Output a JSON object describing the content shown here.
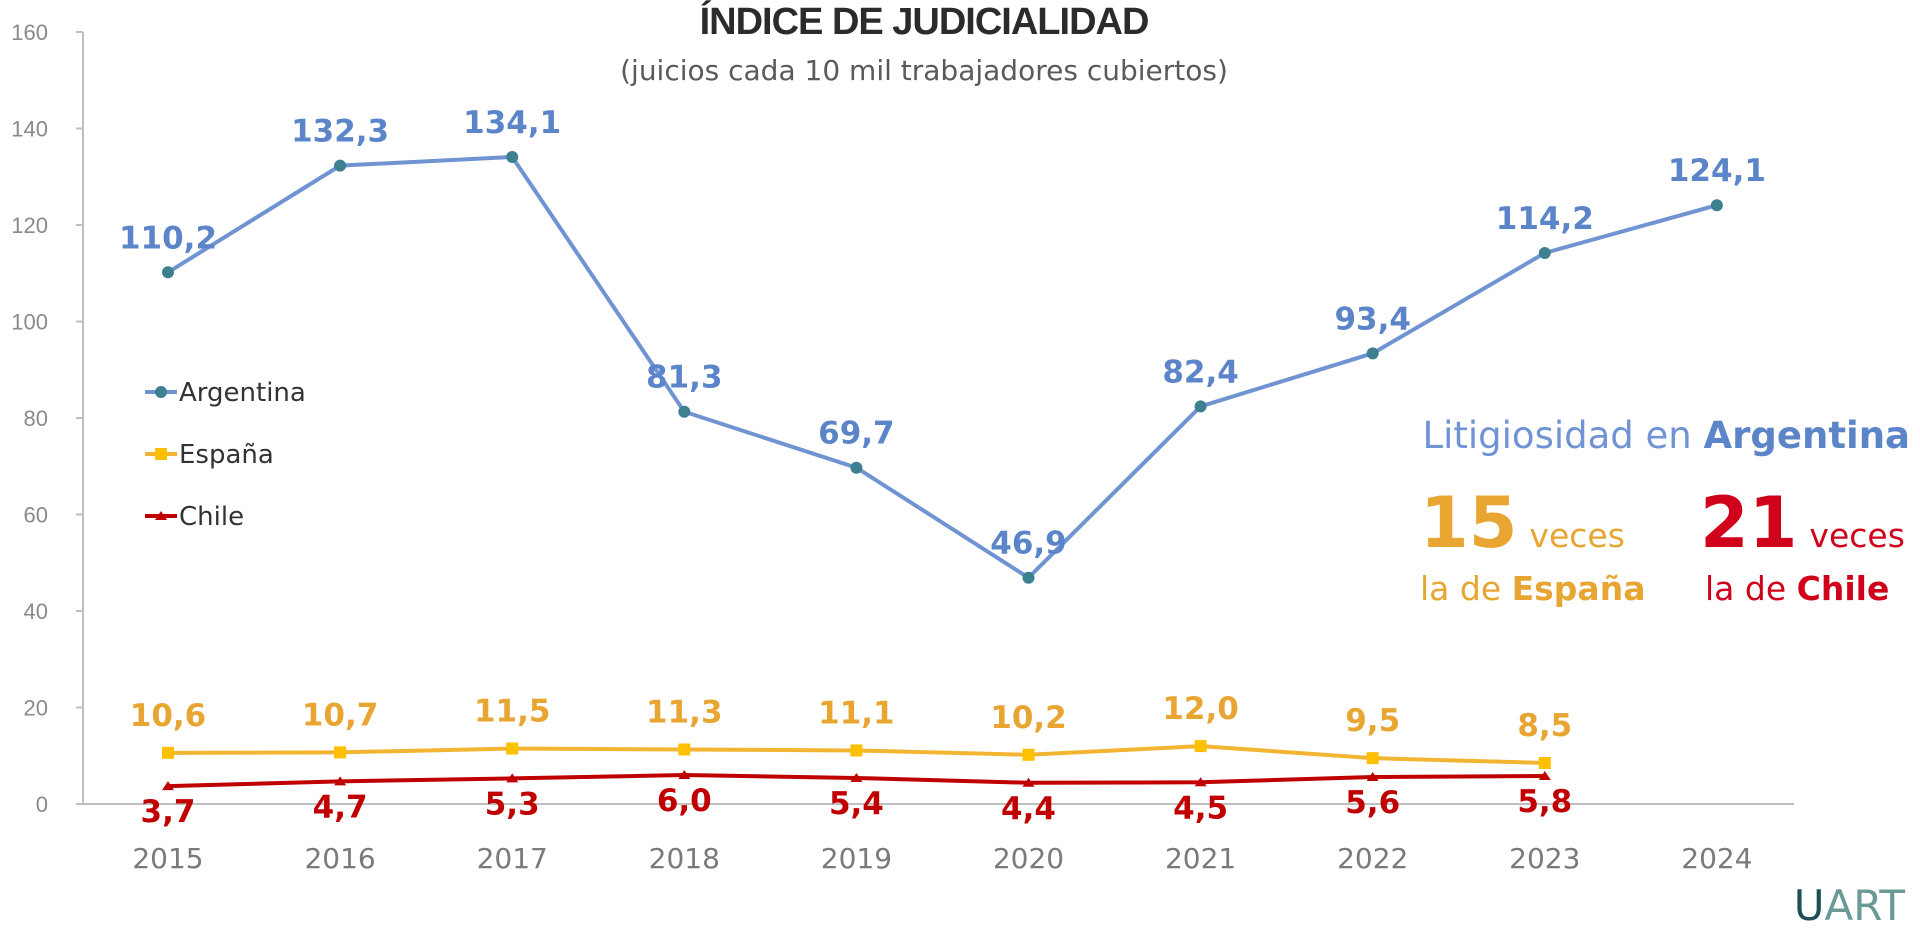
{
  "chart_data": {
    "type": "line",
    "title": "ÍNDICE DE JUDICIALIDAD",
    "subtitle": "(juicios cada 10 mil trabajadores cubiertos)",
    "xlabel": "",
    "ylabel": "",
    "categories": [
      "2015",
      "2016",
      "2017",
      "2018",
      "2019",
      "2020",
      "2021",
      "2022",
      "2023",
      "2024"
    ],
    "ylim": [
      0,
      160
    ],
    "yticks": [
      "0",
      "20",
      "40",
      "60",
      "80",
      "100",
      "120",
      "140",
      "160"
    ],
    "grid": false,
    "legend": "left",
    "series": [
      {
        "name": "Argentina",
        "color": "#7094d2",
        "marker_color": "#3d8090",
        "label_color": "#5b84c9",
        "values": [
          110.2,
          132.3,
          134.1,
          81.3,
          69.7,
          46.9,
          82.4,
          93.4,
          114.2,
          124.1
        ],
        "labels": [
          "110,2",
          "132,3",
          "134,1",
          "81,3",
          "69,7",
          "46,9",
          "82,4",
          "93,4",
          "114,2",
          "124,1"
        ]
      },
      {
        "name": "España",
        "color": "#f2b531",
        "marker_color": "#ffc000",
        "label_color": "#e8a532",
        "values": [
          10.6,
          10.7,
          11.5,
          11.3,
          11.1,
          10.2,
          12.0,
          9.5,
          8.5,
          null
        ],
        "labels": [
          "10,6",
          "10,7",
          "11,5",
          "11,3",
          "11,1",
          "10,2",
          "12,0",
          "9,5",
          "8,5",
          null
        ]
      },
      {
        "name": "Chile",
        "color": "#c00000",
        "marker_color": "#c00000",
        "label_color": "#c00000",
        "values": [
          3.7,
          4.7,
          5.3,
          6.0,
          5.4,
          4.4,
          4.5,
          5.6,
          5.8,
          null
        ],
        "labels": [
          "3,7",
          "4,7",
          "5,3",
          "6,0",
          "5,4",
          "4,4",
          "4,5",
          "5,6",
          "5,8",
          null
        ]
      }
    ],
    "annotation": {
      "headline_prefix": "Litigiosidad en ",
      "headline_bold": "Argentina",
      "spain_number": "15",
      "spain_veces": "veces",
      "spain_prefix": "la de ",
      "spain_bold": "España",
      "chile_number": "21",
      "chile_veces": "veces",
      "chile_prefix": "la de ",
      "chile_bold": "Chile"
    }
  },
  "logo": {
    "text": "UART",
    "color_u": "#1e4f55",
    "color_rest": "#6a9a95"
  }
}
